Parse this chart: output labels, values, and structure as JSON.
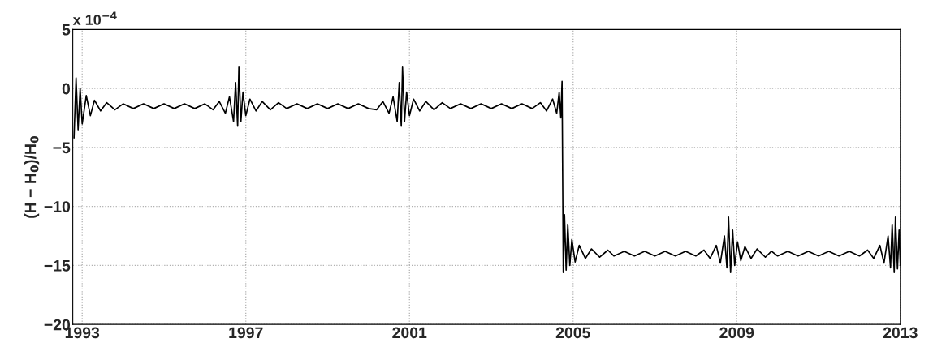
{
  "chart_data": {
    "type": "line",
    "ylabel": "(H − H$_{0}$)/H$_{0}$",
    "annotations": [
      "x 10$^{−4}$"
    ],
    "x": [
      1992.8,
      1992.85,
      1992.9,
      1992.95,
      1993.0,
      1993.1,
      1993.2,
      1993.3,
      1993.45,
      1993.6,
      1993.8,
      1994.0,
      1994.25,
      1994.5,
      1994.75,
      1995.0,
      1995.25,
      1995.5,
      1995.75,
      1996.0,
      1996.2,
      1996.35,
      1996.5,
      1996.6,
      1996.7,
      1996.75,
      1996.8,
      1996.83,
      1996.88,
      1996.93,
      1997.0,
      1997.1,
      1997.25,
      1997.4,
      1997.6,
      1997.8,
      1998.0,
      1998.25,
      1998.5,
      1998.75,
      1999.0,
      1999.25,
      1999.5,
      1999.75,
      2000.0,
      2000.2,
      2000.35,
      2000.5,
      2000.6,
      2000.7,
      2000.75,
      2000.8,
      2000.83,
      2000.88,
      2000.93,
      2001.0,
      2001.1,
      2001.25,
      2001.4,
      2001.6,
      2001.8,
      2002.0,
      2002.25,
      2002.5,
      2002.75,
      2003.0,
      2003.25,
      2003.5,
      2003.75,
      2004.0,
      2004.2,
      2004.35,
      2004.5,
      2004.6,
      2004.66,
      2004.7,
      2004.73,
      2004.76,
      2004.79,
      2004.83,
      2004.87,
      2004.92,
      2004.97,
      2005.05,
      2005.15,
      2005.3,
      2005.45,
      2005.65,
      2005.85,
      2006.0,
      2006.25,
      2006.5,
      2006.75,
      2007.0,
      2007.25,
      2007.5,
      2007.75,
      2008.0,
      2008.2,
      2008.35,
      2008.5,
      2008.6,
      2008.7,
      2008.76,
      2008.8,
      2008.85,
      2008.9,
      2008.95,
      2009.02,
      2009.1,
      2009.2,
      2009.35,
      2009.5,
      2009.7,
      2009.85,
      2010.0,
      2010.25,
      2010.5,
      2010.75,
      2011.0,
      2011.25,
      2011.5,
      2011.75,
      2012.0,
      2012.2,
      2012.35,
      2012.5,
      2012.6,
      2012.7,
      2012.76,
      2012.8,
      2012.85,
      2012.88,
      2012.93,
      2012.97,
      2013.0
    ],
    "series": [
      {
        "color": "#000000",
        "values": [
          -4.2,
          0.9,
          -3.5,
          0.0,
          -3.0,
          -0.6,
          -2.3,
          -1.0,
          -1.9,
          -1.2,
          -1.8,
          -1.3,
          -1.7,
          -1.3,
          -1.7,
          -1.3,
          -1.7,
          -1.3,
          -1.7,
          -1.3,
          -1.8,
          -1.1,
          -2.1,
          -0.7,
          -2.8,
          0.5,
          -3.2,
          1.8,
          -2.8,
          -0.3,
          -2.3,
          -0.9,
          -1.9,
          -1.1,
          -1.8,
          -1.2,
          -1.7,
          -1.3,
          -1.7,
          -1.3,
          -1.7,
          -1.3,
          -1.7,
          -1.3,
          -1.7,
          -1.8,
          -1.1,
          -2.1,
          -0.7,
          -2.8,
          0.5,
          -3.2,
          1.8,
          -2.8,
          -0.3,
          -2.3,
          -0.9,
          -1.9,
          -1.1,
          -1.8,
          -1.2,
          -1.7,
          -1.3,
          -1.7,
          -1.3,
          -1.7,
          -1.3,
          -1.7,
          -1.3,
          -1.7,
          -1.2,
          -1.9,
          -0.9,
          -2.1,
          -0.3,
          -2.5,
          0.6,
          -15.6,
          -10.7,
          -15.4,
          -11.5,
          -15.0,
          -12.8,
          -14.7,
          -13.3,
          -14.4,
          -13.6,
          -14.3,
          -13.7,
          -14.2,
          -13.8,
          -14.2,
          -13.8,
          -14.2,
          -13.8,
          -14.2,
          -13.8,
          -14.2,
          -13.7,
          -14.4,
          -13.3,
          -14.8,
          -12.5,
          -15.2,
          -10.9,
          -15.6,
          -12.0,
          -15.0,
          -13.0,
          -14.6,
          -13.4,
          -14.4,
          -13.6,
          -14.3,
          -13.8,
          -14.2,
          -13.8,
          -14.2,
          -13.8,
          -14.2,
          -13.8,
          -14.2,
          -13.8,
          -14.2,
          -13.7,
          -14.4,
          -13.3,
          -14.8,
          -12.5,
          -15.2,
          -11.5,
          -15.6,
          -10.9,
          -15.3,
          -12.0,
          -15.0
        ]
      }
    ],
    "xlim": [
      1992.77,
      2013
    ],
    "xticks": [
      1993,
      1997,
      2001,
      2005,
      2009,
      2013
    ],
    "ylim": [
      -20,
      5
    ],
    "yticks": [
      -20,
      -15,
      -10,
      -5,
      0,
      5
    ],
    "grid": true,
    "line_style": "solid",
    "marker": "none",
    "legend": false
  }
}
